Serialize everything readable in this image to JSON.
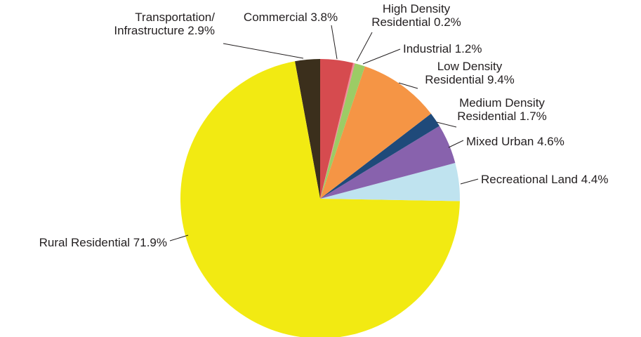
{
  "chart_data": {
    "type": "pie",
    "title": "",
    "start": "12 o'clock",
    "direction": "counterclockwise",
    "slices": [
      {
        "key": "transportation",
        "label_lines": [
          "Transportation/",
          "Infrastructure 2.9%"
        ],
        "value": 2.9,
        "color": "#3b2f1c"
      },
      {
        "key": "rural-residential",
        "label_lines": [
          "Rural Residential 71.9%"
        ],
        "value": 71.9,
        "color": "#f2ea12"
      },
      {
        "key": "recreational-land",
        "label_lines": [
          "Recreational Land 4.4%"
        ],
        "value": 4.4,
        "color": "#bfe3ef"
      },
      {
        "key": "mixed-urban",
        "label_lines": [
          "Mixed Urban 4.6%"
        ],
        "value": 4.6,
        "color": "#8862ad"
      },
      {
        "key": "medium-density-residential",
        "label_lines": [
          "Medium Density",
          "Residential 1.7%"
        ],
        "value": 1.7,
        "color": "#1f4a7a"
      },
      {
        "key": "low-density-residential",
        "label_lines": [
          "Low Density",
          "Residential 9.4%"
        ],
        "value": 9.4,
        "color": "#f59545"
      },
      {
        "key": "industrial",
        "label_lines": [
          "Industrial 1.2%"
        ],
        "value": 1.2,
        "color": "#9ccc65"
      },
      {
        "key": "high-density-residential",
        "label_lines": [
          "High Density",
          "Residential 0.2%"
        ],
        "value": 0.2,
        "color": "#f08a9a"
      },
      {
        "key": "commercial",
        "label_lines": [
          "Commercial 3.8%"
        ],
        "value": 3.8,
        "color": "#d64b4f"
      }
    ]
  }
}
